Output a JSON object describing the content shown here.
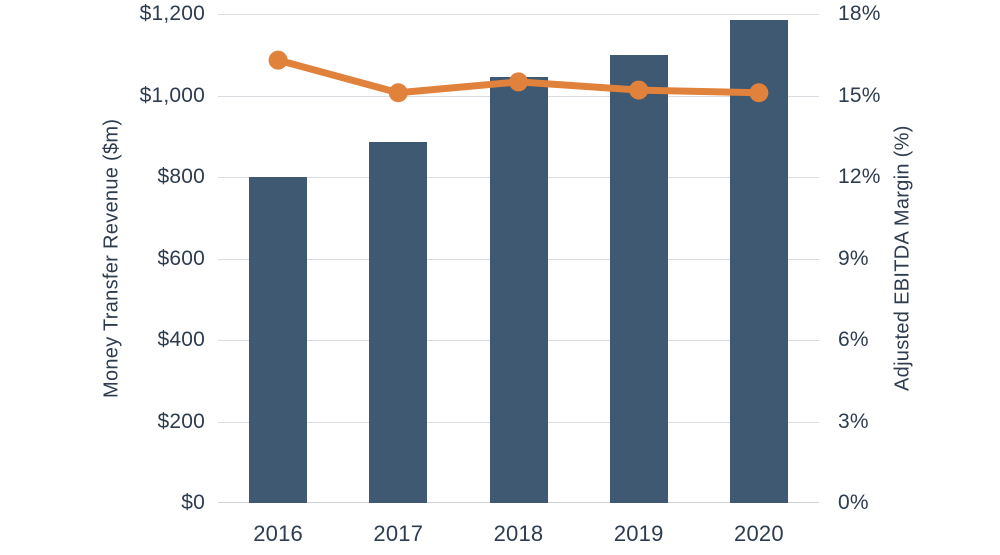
{
  "chart_data": {
    "type": "bar",
    "subtype": "combo-bar-line-dual-axis",
    "categories": [
      "2016",
      "2017",
      "2018",
      "2019",
      "2020"
    ],
    "series": [
      {
        "name": "Money Transfer Revenue ($m)",
        "type": "bar",
        "axis": "left",
        "values": [
          800,
          885,
          1045,
          1100,
          1185
        ],
        "color": "#3e5971"
      },
      {
        "name": "Adjusted EBITDA Margin (%)",
        "type": "line",
        "axis": "right",
        "values": [
          16.3,
          15.1,
          15.5,
          15.2,
          15.1
        ],
        "color": "#e0813c"
      }
    ],
    "title": "",
    "xlabel": "",
    "left_axis": {
      "label": "Money Transfer Revenue ($m)",
      "min": 0,
      "max": 1200,
      "step": 200,
      "tick_labels": [
        "$0",
        "$200",
        "$400",
        "$600",
        "$800",
        "$1,000",
        "$1,200"
      ]
    },
    "right_axis": {
      "label": "Adjusted EBITDA Margin (%)",
      "min": 0,
      "max": 18,
      "step": 3,
      "tick_labels": [
        "0%",
        "3%",
        "6%",
        "9%",
        "12%",
        "15%",
        "18%"
      ]
    },
    "grid": true,
    "legend_position": "none",
    "colors": {
      "bar": "#3e5971",
      "line": "#e0813c",
      "text": "#2d3c4f",
      "gridline": "#d9dce1",
      "background": "#ffffff"
    }
  }
}
